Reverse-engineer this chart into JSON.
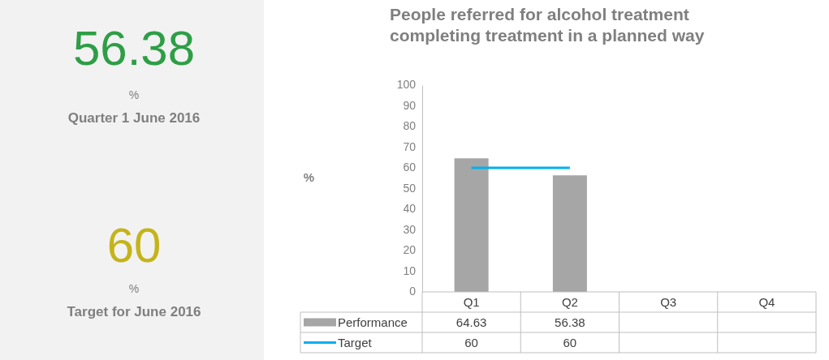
{
  "chart_data": [
    {
      "type": "other",
      "annotations": [
        "56.38",
        "%",
        "Quarter 1 June 2016",
        "60",
        "%",
        "Target for June 2016"
      ]
    },
    {
      "type": "bar",
      "title": "People referred for alcohol treatment completing treatment in a planned way",
      "ylabel": "%",
      "categories": [
        "Q1",
        "Q2",
        "Q3",
        "Q4"
      ],
      "series": [
        {
          "name": "Performance",
          "type": "bar",
          "color": "#a6a6a6",
          "values": [
            64.63,
            56.38,
            null,
            null
          ]
        },
        {
          "name": "Target",
          "type": "line",
          "color": "#00b0f0",
          "values": [
            60,
            60,
            null,
            null
          ]
        }
      ],
      "ylim": [
        0,
        100
      ],
      "yticks": [
        0,
        10,
        20,
        30,
        40,
        50,
        60,
        70,
        80,
        90,
        100
      ],
      "grid": false,
      "legend": "bottom",
      "data_labels": true
    }
  ]
}
